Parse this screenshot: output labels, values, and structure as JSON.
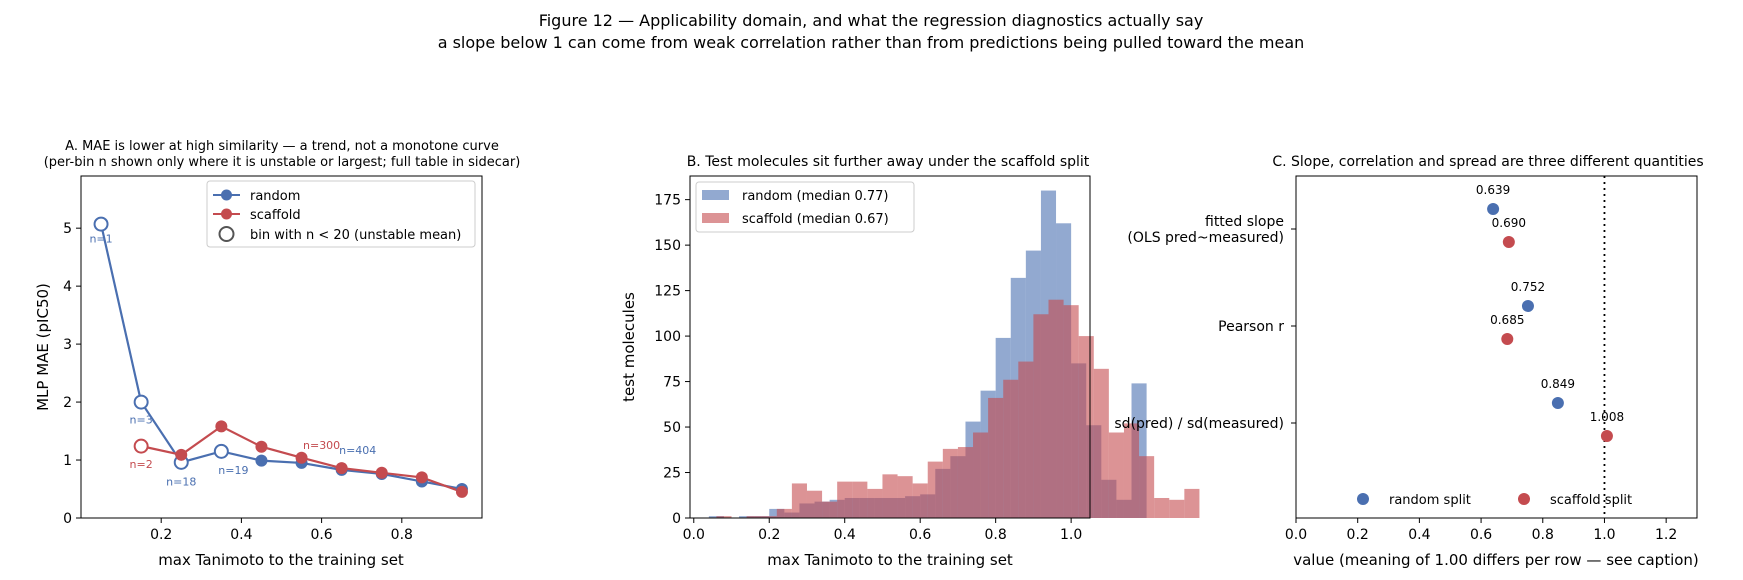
{
  "figure": {
    "title": "Figure 12 — Applicability domain, and what the regression diagnostics actually say",
    "subtitle": "a slope below 1 can come from weak correlation rather than from predictions being pulled toward the mean"
  },
  "colors": {
    "random": "#4a6fb0",
    "scaffold": "#c44b4f",
    "hollow_edge": "#555555"
  },
  "chart_data": [
    {
      "id": "A",
      "type": "line",
      "title_line1": "A. MAE is lower at high similarity — a trend, not a monotone curve",
      "title_line2": "(per-bin n shown only where it is unstable or largest; full table in sidecar)",
      "xlabel": "max Tanimoto to the training set",
      "ylabel": "MLP MAE (pIC50)",
      "xlim": [
        0.0,
        1.0
      ],
      "ylim": [
        0,
        5.9
      ],
      "xticks": [
        0.2,
        0.4,
        0.6,
        0.8
      ],
      "yticks": [
        0,
        1,
        2,
        3,
        4,
        5
      ],
      "series": [
        {
          "name": "random",
          "color_key": "random",
          "points": [
            {
              "x": 0.05,
              "y": 5.07,
              "hollow": true
            },
            {
              "x": 0.15,
              "y": 2.0,
              "hollow": true
            },
            {
              "x": 0.25,
              "y": 0.96,
              "hollow": true
            },
            {
              "x": 0.35,
              "y": 1.15,
              "hollow": true
            },
            {
              "x": 0.45,
              "y": 0.99,
              "hollow": false
            },
            {
              "x": 0.55,
              "y": 0.95,
              "hollow": false
            },
            {
              "x": 0.65,
              "y": 0.83,
              "hollow": false
            },
            {
              "x": 0.75,
              "y": 0.76,
              "hollow": false
            },
            {
              "x": 0.85,
              "y": 0.63,
              "hollow": false
            },
            {
              "x": 0.95,
              "y": 0.5,
              "hollow": false
            }
          ]
        },
        {
          "name": "scaffold",
          "color_key": "scaffold",
          "points": [
            {
              "x": 0.15,
              "y": 1.24,
              "hollow": true
            },
            {
              "x": 0.25,
              "y": 1.09,
              "hollow": false
            },
            {
              "x": 0.35,
              "y": 1.58,
              "hollow": false
            },
            {
              "x": 0.45,
              "y": 1.23,
              "hollow": false
            },
            {
              "x": 0.55,
              "y": 1.04,
              "hollow": false
            },
            {
              "x": 0.65,
              "y": 0.86,
              "hollow": false
            },
            {
              "x": 0.75,
              "y": 0.78,
              "hollow": false
            },
            {
              "x": 0.85,
              "y": 0.7,
              "hollow": false
            },
            {
              "x": 0.95,
              "y": 0.45,
              "hollow": false
            }
          ]
        }
      ],
      "annotations": [
        {
          "text": "n=1",
          "x": 0.05,
          "y": 4.75,
          "color_key": "random"
        },
        {
          "text": "n=3",
          "x": 0.15,
          "y": 1.63,
          "color_key": "random"
        },
        {
          "text": "n=18",
          "x": 0.25,
          "y": 0.56,
          "color_key": "random"
        },
        {
          "text": "n=19",
          "x": 0.38,
          "y": 0.76,
          "color_key": "random"
        },
        {
          "text": "n=404",
          "x": 0.69,
          "y": 1.1,
          "color_key": "random"
        },
        {
          "text": "n=2",
          "x": 0.15,
          "y": 0.86,
          "color_key": "scaffold"
        },
        {
          "text": "n=300",
          "x": 0.6,
          "y": 1.19,
          "color_key": "scaffold"
        }
      ],
      "legend": {
        "position": "upper-right",
        "entries": [
          {
            "label": "random",
            "style": "line-filled",
            "color_key": "random"
          },
          {
            "label": "scaffold",
            "style": "line-filled",
            "color_key": "scaffold"
          },
          {
            "label": "bin with n < 20 (unstable mean)",
            "style": "hollow",
            "color_key": "hollow_edge"
          }
        ]
      }
    },
    {
      "id": "B",
      "type": "bar",
      "subtype": "overlaid-histogram",
      "title": "B. Test molecules sit further away under the scaffold split",
      "xlabel": "max Tanimoto to the training set",
      "ylabel": "test molecules",
      "xlim": [
        -0.01,
        1.05
      ],
      "ylim": [
        0,
        188
      ],
      "xticks": [
        0.0,
        0.2,
        0.4,
        0.6,
        0.8,
        1.0
      ],
      "yticks": [
        0,
        25,
        50,
        75,
        100,
        125,
        150,
        175
      ],
      "bin_start": 0.04,
      "bin_width": 0.04,
      "series": [
        {
          "name": "random (median 0.77)",
          "color_key": "random",
          "start": 0.04,
          "values": [
            1,
            0,
            1,
            1,
            5,
            3,
            8,
            9,
            10,
            11,
            11,
            11,
            11,
            12,
            13,
            27,
            34,
            53,
            70,
            99,
            132,
            147,
            180,
            162,
            85,
            51,
            21,
            10,
            74
          ]
        },
        {
          "name": "scaffold (median 0.67)",
          "color_key": "scaffold",
          "start": 0.02,
          "values": [
            0,
            1,
            0,
            1,
            1,
            5,
            19,
            15,
            9,
            20,
            20,
            16,
            24,
            23,
            19,
            31,
            38,
            39,
            47,
            66,
            76,
            86,
            112,
            120,
            117,
            100,
            82,
            47,
            52,
            34,
            11,
            10,
            16
          ]
        }
      ],
      "legend": {
        "position": "upper-left"
      }
    },
    {
      "id": "C",
      "type": "scatter",
      "title": "C. Slope, correlation and spread are three different quantities",
      "xlabel": "value (meaning of 1.00 differs per row — see caption)",
      "xlim": [
        0.0,
        1.3
      ],
      "xticks": [
        0.0,
        0.2,
        0.4,
        0.6,
        0.8,
        1.0,
        1.2
      ],
      "reference_x": 1.0,
      "rows": [
        "fitted slope\n(OLS pred~measured)",
        "Pearson r",
        "sd(pred) / sd(measured)"
      ],
      "series": [
        {
          "name": "random split",
          "color_key": "random",
          "values": [
            0.639,
            0.752,
            0.849
          ],
          "labels": [
            "0.639",
            "0.752",
            "0.849"
          ]
        },
        {
          "name": "scaffold split",
          "color_key": "scaffold",
          "values": [
            0.69,
            0.685,
            1.008
          ],
          "labels": [
            "0.690",
            "0.685",
            "1.008"
          ]
        }
      ],
      "legend": {
        "position": "lower-center"
      }
    }
  ]
}
